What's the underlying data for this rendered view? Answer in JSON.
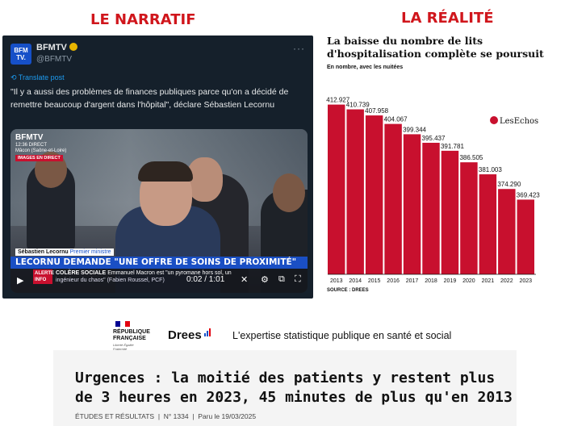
{
  "headings": {
    "left": "LE NARRATIF",
    "right": "LA RÉALITÉ"
  },
  "tweet": {
    "logo_text": "BFM TV.",
    "name": "BFMTV",
    "handle": "@BFMTV",
    "more": "···",
    "translate": "Translate post",
    "text": "\"Il y a aussi des problèmes de finances publiques parce qu'on a décidé de remettre beaucoup d'argent dans l'hôpital\", déclare Sébastien Lecornu",
    "video": {
      "channel": "BFMTV",
      "time": "12:36 DIRECT",
      "location": "Mâcon (Saône-et-Loire)",
      "direct": "IMAGES EN DIRECT",
      "speaker": "Sébastien Lecornu",
      "speaker_role": "Premier ministre",
      "banner": "LECORNU DEMANDE \"UNE OFFRE DE SOINS DE PROXIMITÉ\"",
      "alert": "ALERTE INFO",
      "news_label": "COLÈRE SOCIALE",
      "news_text": "Emmanuel Macron est \"un pyromane hors sol, un",
      "news_text2": "ingénieur du chaos\" (Fabien Roussel, PCF)",
      "clock": "0:02 / 1:01"
    }
  },
  "chart_panel": {
    "title": "La baisse du nombre de lits d'hospitalisation complète se poursuit",
    "subtitle": "En nombre, avec les nuitées",
    "logo": "LesEchos",
    "source": "SOURCE : DREES"
  },
  "chart_data": {
    "type": "bar",
    "categories": [
      "2013",
      "2014",
      "2015",
      "2016",
      "2017",
      "2018",
      "2019",
      "2020",
      "2021",
      "2022",
      "2023"
    ],
    "values": [
      412927,
      410739,
      407958,
      404067,
      399344,
      395437,
      391781,
      386505,
      381003,
      374290,
      369423
    ],
    "value_labels": [
      "412.927",
      "410.739",
      "407.958",
      "404.067",
      "399.344",
      "395.437",
      "391.781",
      "386.505",
      "381.003",
      "374.290",
      "369.423"
    ],
    "bar_color": "#c8102e",
    "ylim": [
      350000,
      415000
    ]
  },
  "footer": {
    "republique": "RÉPUBLIQUE FRANÇAISE",
    "motto": "Liberté Égalité Fraternité",
    "drees": "Drees",
    "tagline": "L'expertise statistique publique en santé et social",
    "headline": "Urgences : la moitié des patients y restent plus de 3 heures en 2023, 45 minutes de plus qu'en 2013",
    "category": "ÉTUDES ET RÉSULTATS",
    "number": "N° 1334",
    "date": "Paru le 19/03/2025"
  }
}
